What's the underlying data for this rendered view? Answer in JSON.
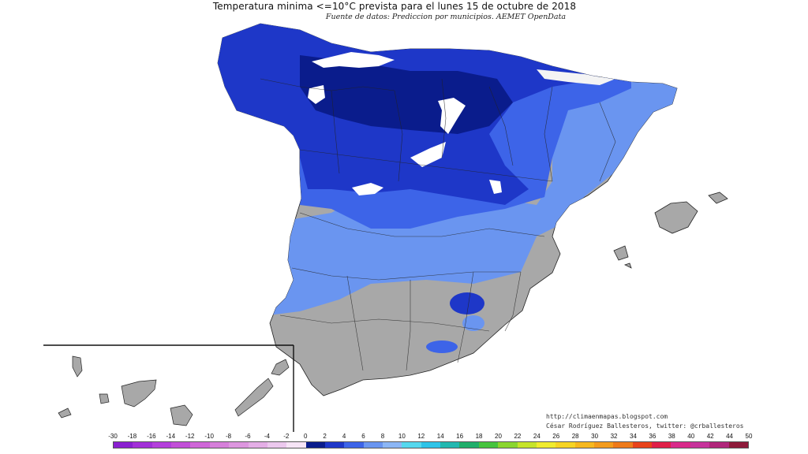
{
  "map": {
    "title": "Temperatura minima <=10°C prevista para el lunes 15 de octubre de 2018",
    "subtitle": "Fuente de datos: Prediccion por municipios. AEMET OpenData",
    "credit_url": "http://climaenmapas.blogspot.com",
    "credit_author": "César Rodríguez Ballesteros, twitter: @crballesteros",
    "regions_shown": [
      "Peninsula Iberica (Espana)",
      "Islas Baleares",
      "Islas Canarias (recuadro)"
    ],
    "colors": {
      "no_data_land": "#a8a8a8",
      "sea_background": "#ffffff",
      "deep_blue_0_2": "#0a1c8c",
      "blue_2_4": "#1e37c8",
      "blue_4_6": "#3d64e8",
      "light_blue_6_8": "#6a95f0",
      "snow_white": "#ffffff",
      "border_lines": "#222222"
    }
  },
  "legend": {
    "labels": [
      "-30",
      "-18",
      "-16",
      "-14",
      "-12",
      "-10",
      "-8",
      "-6",
      "-4",
      "-2",
      "0",
      "2",
      "4",
      "6",
      "8",
      "10",
      "12",
      "14",
      "16",
      "18",
      "20",
      "22",
      "24",
      "26",
      "28",
      "30",
      "32",
      "34",
      "36",
      "38",
      "40",
      "42",
      "44",
      "50"
    ],
    "colors": [
      "#8a1fd0",
      "#a22fd8",
      "#b43fdc",
      "#c24fd8",
      "#cf66d8",
      "#d67fda",
      "#dd96df",
      "#e4aee6",
      "#ecc8ee",
      "#f6e4f6",
      "#0a1c8c",
      "#1e37c8",
      "#3d64e8",
      "#6a95f0",
      "#8cb6f5",
      "#55d8ee",
      "#2ec4e8",
      "#22b8b0",
      "#1fae6a",
      "#45c43e",
      "#8ad62e",
      "#c6e42a",
      "#f0ec2e",
      "#f6d424",
      "#f6b81e",
      "#f39b1c",
      "#ee7a1a",
      "#e8421a",
      "#e01f48",
      "#d92a8a",
      "#c7339b",
      "#b0257a",
      "#8e1a3a"
    ]
  }
}
